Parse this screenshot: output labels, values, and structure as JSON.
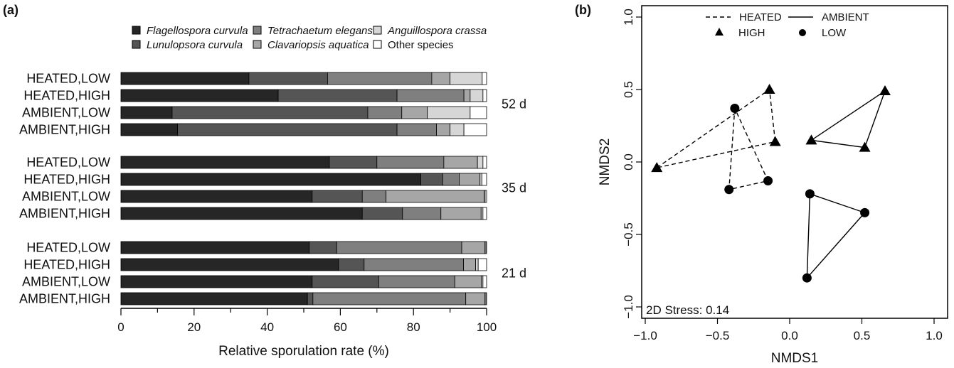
{
  "panel_a_label": "(a)",
  "panel_b_label": "(b)",
  "chart_data": [
    {
      "type": "bar",
      "orientation": "horizontal",
      "stacked": true,
      "xlabel": "Relative sporulation rate (%)",
      "xlim": [
        0,
        100
      ],
      "xticks": [
        "0",
        "20",
        "40",
        "60",
        "80",
        "100"
      ],
      "legend": [
        {
          "name": "Flagellospora curvula",
          "color": "#262626",
          "italic": true
        },
        {
          "name": "Lunulopsora curvula",
          "color": "#555555",
          "italic": true
        },
        {
          "name": "Tetrachaetum elegans",
          "color": "#7f7f7f",
          "italic": true
        },
        {
          "name": "Clavariopsis aquatica",
          "color": "#a6a6a6",
          "italic": true
        },
        {
          "name": "Anguillospora crassa",
          "color": "#d6d6d6",
          "italic": true
        },
        {
          "name": "Other species",
          "color": "#ffffff",
          "italic": false
        }
      ],
      "groups": [
        {
          "label": "52 d",
          "rows": [
            {
              "label": "HEATED,LOW",
              "values": [
                35,
                21.5,
                28.5,
                5,
                8.8,
                1.2
              ]
            },
            {
              "label": "HEATED,HIGH",
              "values": [
                43,
                32.5,
                18.3,
                1.7,
                3.5,
                1
              ]
            },
            {
              "label": "AMBIENT,LOW",
              "values": [
                14,
                53.5,
                9.3,
                7,
                11.7,
                4.5
              ]
            },
            {
              "label": "AMBIENT,HIGH",
              "values": [
                15.5,
                60,
                10.8,
                3.7,
                3.8,
                6.2
              ]
            }
          ]
        },
        {
          "label": "35 d",
          "rows": [
            {
              "label": "HEATED,LOW",
              "values": [
                57,
                13,
                18.3,
                9.2,
                1.5,
                1
              ]
            },
            {
              "label": "HEATED,HIGH",
              "values": [
                82,
                6,
                4.5,
                5.7,
                0.5,
                1.3
              ]
            },
            {
              "label": "AMBIENT,LOW",
              "values": [
                52.3,
                13.7,
                6.5,
                26.8,
                0.3,
                0.4
              ]
            },
            {
              "label": "AMBIENT,HIGH",
              "values": [
                66,
                11,
                10.5,
                11,
                0.5,
                1
              ]
            }
          ]
        },
        {
          "label": "21 d",
          "rows": [
            {
              "label": "HEATED,LOW",
              "values": [
                51.5,
                7.5,
                34.2,
                6.3,
                0.3,
                0.2
              ]
            },
            {
              "label": "HEATED,HIGH",
              "values": [
                59.5,
                7,
                27.2,
                3.3,
                0.7,
                2.3
              ]
            },
            {
              "label": "AMBIENT,LOW",
              "values": [
                52.3,
                18.2,
                20.8,
                7.3,
                0.4,
                1
              ]
            },
            {
              "label": "AMBIENT,HIGH",
              "values": [
                51,
                1.5,
                41.8,
                5.2,
                0.3,
                0.2
              ]
            }
          ]
        }
      ]
    },
    {
      "type": "scatter",
      "xlabel": "NMDS1",
      "ylabel": "NMDS2",
      "xlim": [
        -1.0,
        1.0
      ],
      "ylim": [
        -1.0,
        1.0
      ],
      "xticks": [
        "−1.0",
        "−0.5",
        "0.0",
        "0.5",
        "1.0"
      ],
      "yticks": [
        "−1.0",
        "−0.5",
        "0.0",
        "0.5",
        "1.0"
      ],
      "annotation": "2D Stress: 0.14",
      "legend": {
        "lines": [
          {
            "name": "HEATED",
            "style": "dashed"
          },
          {
            "name": "AMBIENT",
            "style": "solid"
          }
        ],
        "markers": [
          {
            "name": "HIGH",
            "marker": "triangle"
          },
          {
            "name": "LOW",
            "marker": "circle"
          }
        ]
      },
      "hulls": [
        {
          "treatment": "HEATED",
          "level": "HIGH",
          "style": "dashed",
          "points": [
            [
              -0.92,
              -0.04
            ],
            [
              -0.14,
              0.5
            ],
            [
              -0.1,
              0.14
            ]
          ]
        },
        {
          "treatment": "HEATED",
          "level": "LOW",
          "style": "dashed",
          "points": [
            [
              -0.38,
              0.37
            ],
            [
              -0.42,
              -0.19
            ],
            [
              -0.15,
              -0.13
            ]
          ]
        },
        {
          "treatment": "AMBIENT",
          "level": "HIGH",
          "style": "solid",
          "points": [
            [
              0.15,
              0.15
            ],
            [
              0.66,
              0.49
            ],
            [
              0.52,
              0.1
            ]
          ]
        },
        {
          "treatment": "AMBIENT",
          "level": "LOW",
          "style": "solid",
          "points": [
            [
              0.14,
              -0.22
            ],
            [
              0.52,
              -0.35
            ],
            [
              0.12,
              -0.8
            ]
          ]
        }
      ]
    }
  ]
}
